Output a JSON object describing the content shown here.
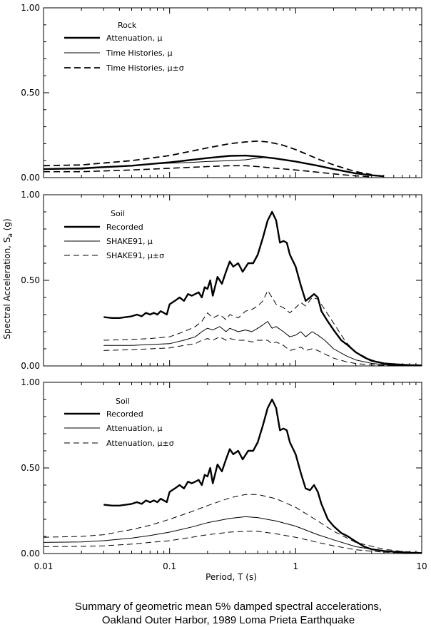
{
  "caption": {
    "line1": "Summary of geometric mean 5% damped spectral accelerations,",
    "line2": "Oakland Outer Harbor, 1989 Loma Prieta Earthquake"
  },
  "chart_data": [
    {
      "type": "line",
      "panel": "top",
      "x_scale": "log",
      "xlim": [
        0.01,
        10
      ],
      "ylim": [
        0,
        1
      ],
      "y_ticks": [
        "1.00",
        "0.50",
        "0.00"
      ],
      "x_tick_labels": [],
      "legend_title": "Rock",
      "legend_placement": "top-left",
      "series": [
        {
          "name": "Attenuation, μ",
          "style": "thick-solid",
          "x": [
            0.01,
            0.02,
            0.05,
            0.1,
            0.2,
            0.3,
            0.4,
            0.5,
            0.7,
            1,
            1.5,
            2,
            3,
            4,
            5
          ],
          "y": [
            0.05,
            0.055,
            0.07,
            0.09,
            0.115,
            0.128,
            0.13,
            0.125,
            0.112,
            0.095,
            0.07,
            0.05,
            0.025,
            0.014,
            0.008
          ]
        },
        {
          "name": "Time Histories, μ",
          "style": "thin-solid",
          "x": [
            0.01,
            0.02,
            0.03,
            0.05,
            0.07,
            0.1,
            0.15,
            0.2,
            0.3,
            0.4,
            0.5,
            0.6,
            0.7,
            0.8,
            1,
            1.3,
            1.6,
            2,
            2.5,
            3,
            4,
            5
          ],
          "y": [
            0.05,
            0.05,
            0.06,
            0.07,
            0.08,
            0.085,
            0.09,
            0.095,
            0.1,
            0.105,
            0.115,
            0.12,
            0.115,
            0.105,
            0.095,
            0.08,
            0.065,
            0.05,
            0.035,
            0.025,
            0.012,
            0.006
          ]
        },
        {
          "name": "Time Histories, μ±σ",
          "style": "dashed-upper",
          "x": [
            0.01,
            0.02,
            0.05,
            0.1,
            0.2,
            0.3,
            0.4,
            0.5,
            0.6,
            0.7,
            0.8,
            1,
            1.5,
            2,
            3,
            4
          ],
          "y": [
            0.07,
            0.075,
            0.1,
            0.13,
            0.175,
            0.2,
            0.21,
            0.215,
            0.21,
            0.2,
            0.19,
            0.165,
            0.11,
            0.075,
            0.035,
            0.018
          ]
        },
        {
          "name": "Time Histories, μ±σ",
          "style": "dashed-lower",
          "x": [
            0.01,
            0.02,
            0.05,
            0.1,
            0.2,
            0.3,
            0.4,
            0.5,
            0.7,
            1,
            1.5,
            2,
            3,
            4
          ],
          "y": [
            0.035,
            0.035,
            0.045,
            0.055,
            0.065,
            0.07,
            0.07,
            0.065,
            0.055,
            0.045,
            0.032,
            0.022,
            0.01,
            0.005
          ]
        }
      ]
    },
    {
      "type": "line",
      "panel": "middle",
      "x_scale": "log",
      "xlim": [
        0.01,
        10
      ],
      "ylim": [
        0,
        1
      ],
      "y_ticks": [
        "1.00",
        "0.50",
        "0.00"
      ],
      "x_tick_labels": [],
      "ylabel": "Spectral Acceleration, S",
      "ylabel_subscript": "a",
      "ylabel_unit": " (g)",
      "legend_title": "Soil",
      "legend_placement": "top-left",
      "series": [
        {
          "name": "Recorded",
          "style": "thick-solid",
          "x": [
            0.03,
            0.035,
            0.04,
            0.045,
            0.05,
            0.055,
            0.06,
            0.065,
            0.07,
            0.075,
            0.08,
            0.085,
            0.09,
            0.095,
            0.1,
            0.11,
            0.12,
            0.13,
            0.14,
            0.15,
            0.16,
            0.17,
            0.18,
            0.19,
            0.2,
            0.21,
            0.22,
            0.24,
            0.26,
            0.28,
            0.3,
            0.32,
            0.35,
            0.38,
            0.42,
            0.46,
            0.5,
            0.55,
            0.6,
            0.65,
            0.7,
            0.75,
            0.8,
            0.85,
            0.9,
            1.0,
            1.1,
            1.2,
            1.3,
            1.4,
            1.5,
            1.6,
            1.8,
            2.0,
            2.3,
            2.6,
            3.0,
            3.5,
            4.0,
            5.0,
            6.0,
            8.0,
            10.0
          ],
          "y": [
            0.285,
            0.28,
            0.28,
            0.285,
            0.29,
            0.3,
            0.29,
            0.31,
            0.3,
            0.31,
            0.3,
            0.32,
            0.31,
            0.3,
            0.36,
            0.38,
            0.4,
            0.38,
            0.42,
            0.41,
            0.42,
            0.43,
            0.4,
            0.46,
            0.45,
            0.5,
            0.41,
            0.52,
            0.48,
            0.55,
            0.61,
            0.58,
            0.6,
            0.55,
            0.6,
            0.6,
            0.65,
            0.75,
            0.85,
            0.9,
            0.85,
            0.72,
            0.73,
            0.72,
            0.65,
            0.58,
            0.47,
            0.38,
            0.4,
            0.42,
            0.4,
            0.32,
            0.26,
            0.21,
            0.15,
            0.12,
            0.08,
            0.05,
            0.03,
            0.015,
            0.01,
            0.005,
            0.003
          ]
        },
        {
          "name": "SHAKE91, μ",
          "style": "thin-solid",
          "x": [
            0.03,
            0.05,
            0.07,
            0.1,
            0.13,
            0.16,
            0.18,
            0.2,
            0.22,
            0.25,
            0.28,
            0.3,
            0.35,
            0.4,
            0.45,
            0.5,
            0.55,
            0.6,
            0.65,
            0.7,
            0.8,
            0.9,
            1.0,
            1.1,
            1.2,
            1.35,
            1.5,
            1.7,
            2.0,
            2.5,
            3.0,
            4.0,
            5.0,
            6.0,
            8.0,
            10.0
          ],
          "y": [
            0.12,
            0.12,
            0.125,
            0.13,
            0.15,
            0.17,
            0.2,
            0.22,
            0.21,
            0.23,
            0.2,
            0.22,
            0.2,
            0.21,
            0.2,
            0.22,
            0.24,
            0.26,
            0.22,
            0.23,
            0.2,
            0.17,
            0.18,
            0.2,
            0.17,
            0.2,
            0.18,
            0.15,
            0.1,
            0.06,
            0.035,
            0.015,
            0.008,
            0.004,
            0.002,
            0.001
          ]
        },
        {
          "name": "SHAKE91, μ±σ",
          "style": "dashed-upper",
          "x": [
            0.03,
            0.05,
            0.07,
            0.1,
            0.13,
            0.16,
            0.18,
            0.2,
            0.22,
            0.25,
            0.28,
            0.3,
            0.35,
            0.4,
            0.45,
            0.5,
            0.55,
            0.6,
            0.65,
            0.7,
            0.8,
            0.9,
            1.0,
            1.1,
            1.2,
            1.35,
            1.5,
            1.7,
            2.0,
            2.5,
            3.0,
            4.0,
            5.0,
            6.0,
            8.0,
            10.0
          ],
          "y": [
            0.15,
            0.155,
            0.16,
            0.17,
            0.2,
            0.23,
            0.26,
            0.31,
            0.28,
            0.3,
            0.27,
            0.3,
            0.28,
            0.32,
            0.33,
            0.35,
            0.38,
            0.44,
            0.4,
            0.36,
            0.34,
            0.31,
            0.34,
            0.37,
            0.35,
            0.4,
            0.39,
            0.33,
            0.25,
            0.14,
            0.08,
            0.035,
            0.018,
            0.01,
            0.005,
            0.002
          ]
        },
        {
          "name": "SHAKE91, μ±σ",
          "style": "dashed-lower",
          "x": [
            0.03,
            0.05,
            0.07,
            0.1,
            0.13,
            0.16,
            0.18,
            0.2,
            0.22,
            0.25,
            0.28,
            0.3,
            0.35,
            0.4,
            0.45,
            0.5,
            0.55,
            0.6,
            0.65,
            0.7,
            0.8,
            0.9,
            1.0,
            1.1,
            1.2,
            1.35,
            1.5,
            1.7,
            2.0,
            2.5,
            3.0,
            4.0,
            5.0,
            6.0,
            8.0,
            10.0
          ],
          "y": [
            0.09,
            0.095,
            0.1,
            0.105,
            0.12,
            0.13,
            0.15,
            0.16,
            0.15,
            0.17,
            0.15,
            0.16,
            0.15,
            0.15,
            0.14,
            0.15,
            0.15,
            0.15,
            0.13,
            0.14,
            0.12,
            0.09,
            0.1,
            0.11,
            0.09,
            0.1,
            0.09,
            0.07,
            0.045,
            0.025,
            0.014,
            0.006,
            0.003,
            0.002,
            0.001,
            0.0005
          ]
        }
      ]
    },
    {
      "type": "line",
      "panel": "bottom",
      "x_scale": "log",
      "xlim": [
        0.01,
        10
      ],
      "ylim": [
        0,
        1
      ],
      "y_ticks": [
        "1.00",
        "0.50",
        "0.00"
      ],
      "x_tick_labels": [
        "0.01",
        "0.1",
        "1",
        "10"
      ],
      "xlabel": "Period, T (s)",
      "legend_title": "Soil",
      "legend_placement": "top-left",
      "series": [
        {
          "name": "Recorded",
          "style": "thick-solid",
          "x": [
            0.03,
            0.035,
            0.04,
            0.045,
            0.05,
            0.055,
            0.06,
            0.065,
            0.07,
            0.075,
            0.08,
            0.085,
            0.09,
            0.095,
            0.1,
            0.11,
            0.12,
            0.13,
            0.14,
            0.15,
            0.16,
            0.17,
            0.18,
            0.19,
            0.2,
            0.21,
            0.22,
            0.24,
            0.26,
            0.28,
            0.3,
            0.32,
            0.35,
            0.38,
            0.42,
            0.46,
            0.5,
            0.55,
            0.6,
            0.65,
            0.7,
            0.75,
            0.8,
            0.85,
            0.9,
            1.0,
            1.1,
            1.2,
            1.3,
            1.4,
            1.5,
            1.6,
            1.8,
            2.0,
            2.3,
            2.6,
            3.0,
            3.5,
            4.0,
            5.0,
            6.0,
            8.0,
            10.0
          ],
          "y": [
            0.285,
            0.28,
            0.28,
            0.285,
            0.29,
            0.3,
            0.29,
            0.31,
            0.3,
            0.31,
            0.3,
            0.32,
            0.31,
            0.3,
            0.36,
            0.38,
            0.4,
            0.38,
            0.42,
            0.41,
            0.42,
            0.43,
            0.4,
            0.46,
            0.45,
            0.5,
            0.41,
            0.52,
            0.48,
            0.55,
            0.61,
            0.58,
            0.6,
            0.55,
            0.6,
            0.6,
            0.65,
            0.75,
            0.85,
            0.9,
            0.85,
            0.72,
            0.73,
            0.72,
            0.65,
            0.58,
            0.47,
            0.38,
            0.37,
            0.4,
            0.36,
            0.29,
            0.2,
            0.16,
            0.12,
            0.1,
            0.07,
            0.04,
            0.025,
            0.015,
            0.01,
            0.005,
            0.003
          ]
        },
        {
          "name": "Attenuation, μ",
          "style": "thin-solid",
          "x": [
            0.01,
            0.02,
            0.03,
            0.05,
            0.07,
            0.1,
            0.15,
            0.2,
            0.3,
            0.4,
            0.5,
            0.7,
            1,
            1.5,
            2,
            3,
            5,
            7,
            10
          ],
          "y": [
            0.065,
            0.068,
            0.075,
            0.09,
            0.105,
            0.125,
            0.155,
            0.18,
            0.205,
            0.215,
            0.21,
            0.19,
            0.16,
            0.11,
            0.08,
            0.04,
            0.015,
            0.008,
            0.004
          ]
        },
        {
          "name": "Attenuation, μ±σ",
          "style": "dashed-upper",
          "x": [
            0.01,
            0.02,
            0.03,
            0.05,
            0.07,
            0.1,
            0.15,
            0.2,
            0.3,
            0.4,
            0.5,
            0.7,
            1,
            1.5,
            2,
            3,
            5,
            7,
            10
          ],
          "y": [
            0.095,
            0.1,
            0.11,
            0.14,
            0.165,
            0.2,
            0.245,
            0.28,
            0.325,
            0.345,
            0.345,
            0.32,
            0.27,
            0.19,
            0.13,
            0.065,
            0.025,
            0.012,
            0.006
          ]
        },
        {
          "name": "Attenuation, μ±σ",
          "style": "dashed-lower",
          "x": [
            0.01,
            0.02,
            0.03,
            0.05,
            0.07,
            0.1,
            0.15,
            0.2,
            0.3,
            0.4,
            0.5,
            0.7,
            1,
            1.5,
            2,
            3,
            5,
            7,
            10
          ],
          "y": [
            0.04,
            0.042,
            0.045,
            0.055,
            0.065,
            0.075,
            0.095,
            0.11,
            0.125,
            0.13,
            0.13,
            0.115,
            0.095,
            0.065,
            0.045,
            0.022,
            0.008,
            0.004,
            0.002
          ]
        }
      ]
    }
  ]
}
